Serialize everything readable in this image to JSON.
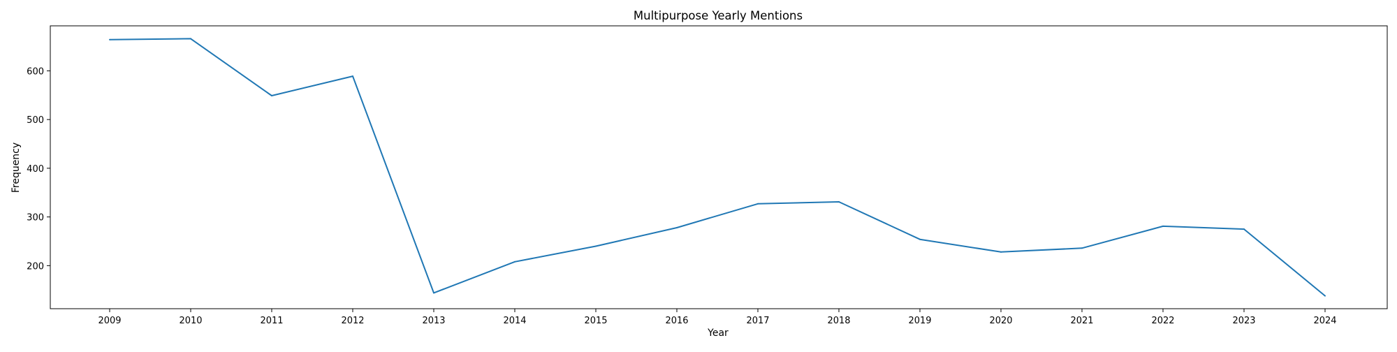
{
  "chart_data": {
    "type": "line",
    "title": "Multipurpose Yearly Mentions",
    "xlabel": "Year",
    "ylabel": "Frequency",
    "x": [
      "2009",
      "2010",
      "2011",
      "2012",
      "2013",
      "2014",
      "2015",
      "2016",
      "2017",
      "2018",
      "2019",
      "2020",
      "2021",
      "2022",
      "2023",
      "2024"
    ],
    "series": [
      {
        "values": [
          664,
          666,
          549,
          589,
          144,
          208,
          240,
          278,
          327,
          331,
          254,
          228,
          236,
          281,
          275,
          138
        ],
        "color": "#1f77b4"
      }
    ],
    "yticks": [
      200,
      300,
      400,
      500,
      600
    ],
    "ylim": [
      111.6,
      692.4
    ],
    "grid": false,
    "legend": false
  }
}
